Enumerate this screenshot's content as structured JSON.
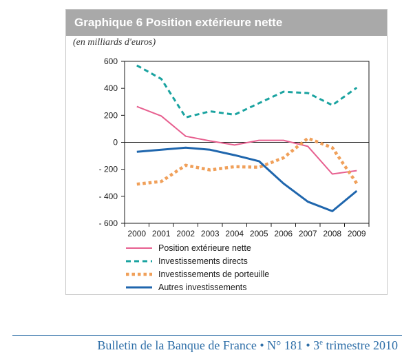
{
  "title": "Graphique 6  Position extérieure nette",
  "unit_label": "(en milliards d'euros)",
  "footer": "Bulletin de la Banque de France • N° 181 • 3e trimestre 2010",
  "chart_data": {
    "type": "line",
    "title": "Position extérieure nette",
    "ylabel": "(en milliards d'euros)",
    "xlabel": "",
    "ylim": [
      -600,
      600
    ],
    "yticks": [
      600,
      400,
      200,
      0,
      -200,
      -400,
      -600
    ],
    "ytick_labels": [
      "600",
      "400",
      "200",
      "0",
      "- 200",
      "- 400",
      "- 600"
    ],
    "categories": [
      "2000",
      "2001",
      "2002",
      "2003",
      "2004",
      "2005",
      "2006",
      "2007",
      "2008",
      "2009"
    ],
    "grid": false,
    "legend_position": "bottom",
    "series": [
      {
        "name": "Position extérieure nette",
        "color": "#e75f8f",
        "style": "solid",
        "values": [
          265,
          195,
          45,
          10,
          -20,
          15,
          15,
          -30,
          -235,
          -210
        ]
      },
      {
        "name": "Investissements directs",
        "color": "#1aa3a0",
        "style": "dashed",
        "values": [
          570,
          470,
          185,
          230,
          205,
          290,
          375,
          365,
          275,
          405
        ]
      },
      {
        "name": "Investissements de porteuille",
        "color": "#f0a05a",
        "style": "dotted",
        "values": [
          -310,
          -290,
          -170,
          -205,
          -180,
          -185,
          -115,
          30,
          -40,
          -305
        ]
      },
      {
        "name": "Autres investissements",
        "color": "#1f66ad",
        "style": "solid-thick",
        "values": [
          -70,
          -55,
          -40,
          -55,
          -95,
          -140,
          -305,
          -440,
          -510,
          -360
        ]
      }
    ]
  }
}
